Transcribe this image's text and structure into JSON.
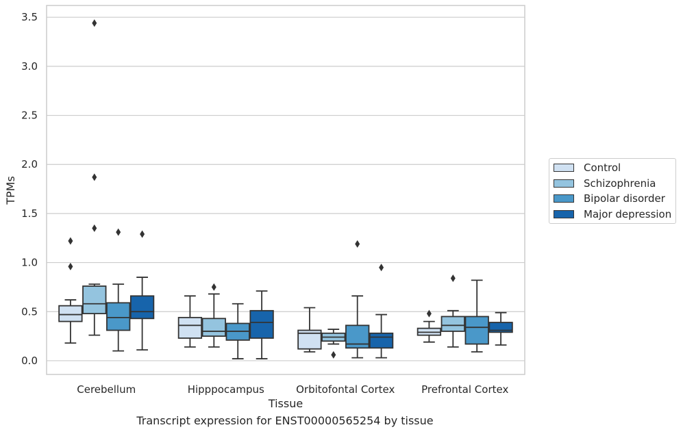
{
  "caption": "Transcript expression for ENST00000565254 by tissue",
  "chart_data": {
    "type": "box",
    "xlabel": "Tissue",
    "ylabel": "TPMs",
    "ylim": [
      -0.14,
      3.62
    ],
    "yticks": [
      "0.0",
      "0.5",
      "1.0",
      "1.5",
      "2.0",
      "2.5",
      "3.0",
      "3.5"
    ],
    "grid": "horizontal",
    "legend_position": "right",
    "categories": [
      "Cerebellum",
      "Hipppocampus",
      "Orbitofontal Cortex",
      "Prefrontal Cortex"
    ],
    "series": [
      {
        "name": "Control",
        "color": "#d0e1f2",
        "boxes": [
          {
            "whisker_low": 0.18,
            "q1": 0.4,
            "median": 0.47,
            "q3": 0.56,
            "whisker_high": 0.62,
            "outliers": [
              1.22,
              0.96
            ]
          },
          {
            "whisker_low": 0.14,
            "q1": 0.23,
            "median": 0.36,
            "q3": 0.44,
            "whisker_high": 0.66,
            "outliers": []
          },
          {
            "whisker_low": 0.09,
            "q1": 0.12,
            "median": 0.28,
            "q3": 0.31,
            "whisker_high": 0.54,
            "outliers": []
          },
          {
            "whisker_low": 0.19,
            "q1": 0.26,
            "median": 0.29,
            "q3": 0.33,
            "whisker_high": 0.4,
            "outliers": [
              0.48
            ]
          }
        ]
      },
      {
        "name": "Schizophrenia",
        "color": "#94c4df",
        "boxes": [
          {
            "whisker_low": 0.26,
            "q1": 0.48,
            "median": 0.58,
            "q3": 0.76,
            "whisker_high": 0.78,
            "outliers": [
              3.44,
              1.87,
              1.35
            ]
          },
          {
            "whisker_low": 0.14,
            "q1": 0.25,
            "median": 0.3,
            "q3": 0.43,
            "whisker_high": 0.68,
            "outliers": [
              0.75
            ]
          },
          {
            "whisker_low": 0.17,
            "q1": 0.2,
            "median": 0.24,
            "q3": 0.28,
            "whisker_high": 0.32,
            "outliers": [
              0.06
            ]
          },
          {
            "whisker_low": 0.14,
            "q1": 0.3,
            "median": 0.36,
            "q3": 0.45,
            "whisker_high": 0.51,
            "outliers": [
              0.84
            ]
          }
        ]
      },
      {
        "name": "Bipolar disorder",
        "color": "#4a98c9",
        "boxes": [
          {
            "whisker_low": 0.1,
            "q1": 0.31,
            "median": 0.44,
            "q3": 0.59,
            "whisker_high": 0.78,
            "outliers": [
              1.31
            ]
          },
          {
            "whisker_low": 0.02,
            "q1": 0.21,
            "median": 0.3,
            "q3": 0.38,
            "whisker_high": 0.58,
            "outliers": []
          },
          {
            "whisker_low": 0.03,
            "q1": 0.13,
            "median": 0.17,
            "q3": 0.36,
            "whisker_high": 0.66,
            "outliers": [
              1.19
            ]
          },
          {
            "whisker_low": 0.09,
            "q1": 0.17,
            "median": 0.34,
            "q3": 0.45,
            "whisker_high": 0.82,
            "outliers": []
          }
        ]
      },
      {
        "name": "Major depression",
        "color": "#1764ab",
        "boxes": [
          {
            "whisker_low": 0.11,
            "q1": 0.43,
            "median": 0.5,
            "q3": 0.66,
            "whisker_high": 0.85,
            "outliers": [
              1.29
            ]
          },
          {
            "whisker_low": 0.02,
            "q1": 0.23,
            "median": 0.39,
            "q3": 0.51,
            "whisker_high": 0.71,
            "outliers": []
          },
          {
            "whisker_low": 0.03,
            "q1": 0.13,
            "median": 0.24,
            "q3": 0.28,
            "whisker_high": 0.47,
            "outliers": [
              0.95
            ]
          },
          {
            "whisker_low": 0.16,
            "q1": 0.29,
            "median": 0.31,
            "q3": 0.39,
            "whisker_high": 0.49,
            "outliers": []
          }
        ]
      }
    ]
  }
}
